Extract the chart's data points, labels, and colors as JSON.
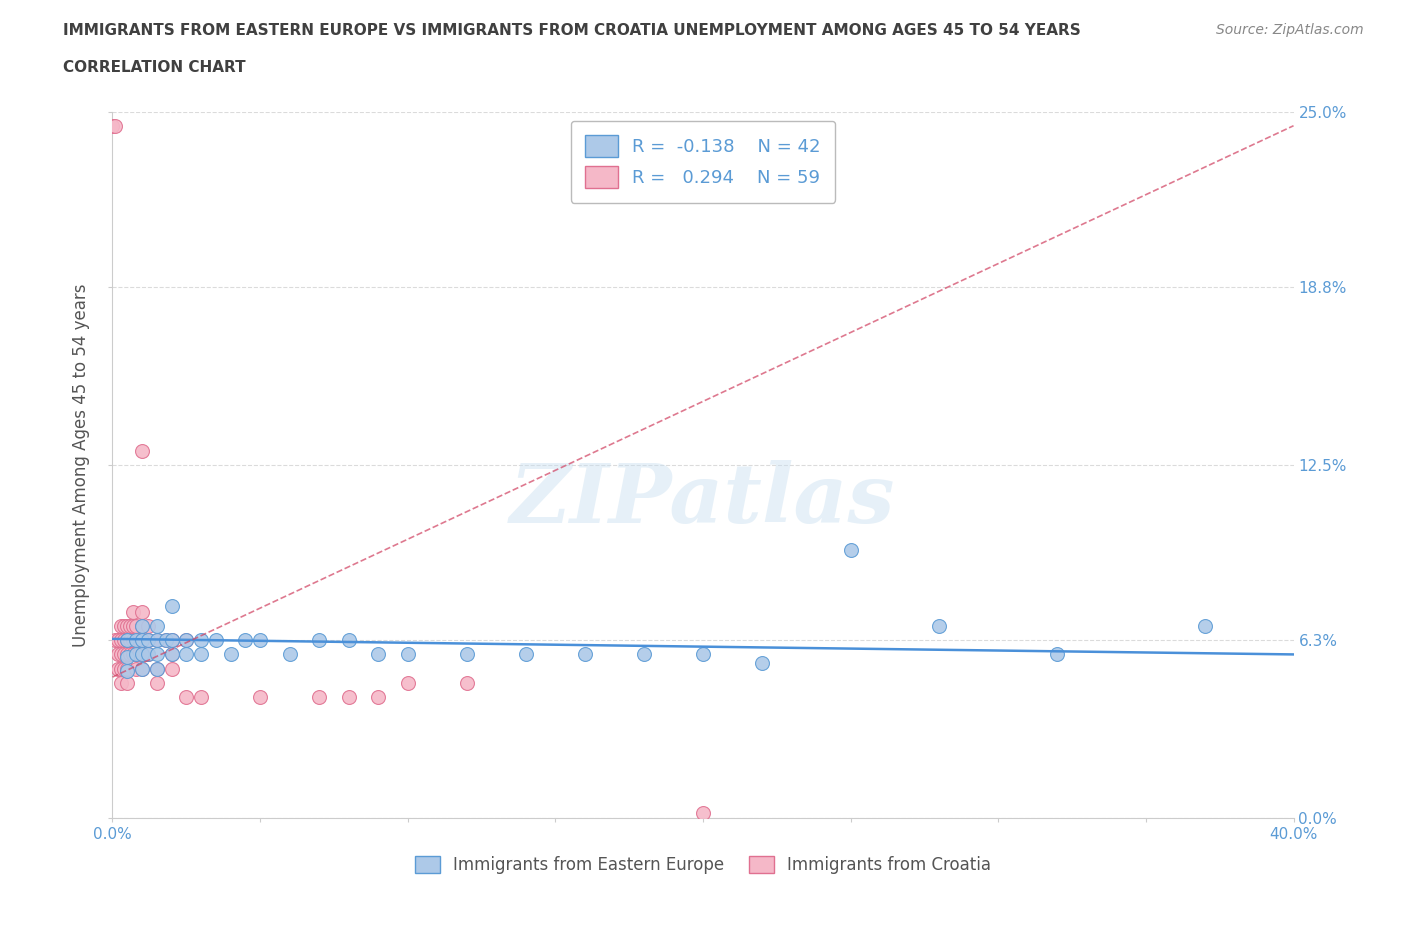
{
  "title_line1": "IMMIGRANTS FROM EASTERN EUROPE VS IMMIGRANTS FROM CROATIA UNEMPLOYMENT AMONG AGES 45 TO 54 YEARS",
  "title_line2": "CORRELATION CHART",
  "source": "Source: ZipAtlas.com",
  "xlabel_legend1": "Immigrants from Eastern Europe",
  "xlabel_legend2": "Immigrants from Croatia",
  "ylabel": "Unemployment Among Ages 45 to 54 years",
  "xlim": [
    0.0,
    0.4
  ],
  "ylim": [
    0.0,
    0.25
  ],
  "xticks": [
    0.0,
    0.05,
    0.1,
    0.15,
    0.2,
    0.25,
    0.3,
    0.35,
    0.4
  ],
  "yticks": [
    0.0,
    0.063,
    0.125,
    0.188,
    0.25
  ],
  "ytick_labels": [
    "0.0%",
    "6.3%",
    "12.5%",
    "18.8%",
    "25.0%"
  ],
  "xtick_label_first": "0.0%",
  "xtick_label_last": "40.0%",
  "blue_color": "#adc9e8",
  "pink_color": "#f5b8c8",
  "blue_edge_color": "#5b9bd5",
  "pink_edge_color": "#e07090",
  "blue_line_color": "#4a90d9",
  "pink_line_color": "#d04060",
  "watermark": "ZIPatlas",
  "R_blue": -0.138,
  "N_blue": 42,
  "R_pink": 0.294,
  "N_pink": 59,
  "blue_scatter_x": [
    0.005,
    0.005,
    0.005,
    0.008,
    0.008,
    0.01,
    0.01,
    0.01,
    0.01,
    0.012,
    0.012,
    0.015,
    0.015,
    0.015,
    0.015,
    0.018,
    0.02,
    0.02,
    0.02,
    0.025,
    0.025,
    0.03,
    0.03,
    0.035,
    0.04,
    0.045,
    0.05,
    0.06,
    0.07,
    0.08,
    0.09,
    0.1,
    0.12,
    0.14,
    0.16,
    0.18,
    0.2,
    0.22,
    0.25,
    0.28,
    0.32,
    0.37
  ],
  "blue_scatter_y": [
    0.063,
    0.057,
    0.052,
    0.063,
    0.058,
    0.063,
    0.058,
    0.053,
    0.068,
    0.063,
    0.058,
    0.063,
    0.058,
    0.053,
    0.068,
    0.063,
    0.075,
    0.058,
    0.063,
    0.063,
    0.058,
    0.063,
    0.058,
    0.063,
    0.058,
    0.063,
    0.063,
    0.058,
    0.063,
    0.063,
    0.058,
    0.058,
    0.058,
    0.058,
    0.058,
    0.058,
    0.058,
    0.055,
    0.095,
    0.068,
    0.058,
    0.068
  ],
  "pink_scatter_x": [
    0.0,
    0.001,
    0.001,
    0.002,
    0.002,
    0.002,
    0.003,
    0.003,
    0.003,
    0.003,
    0.003,
    0.004,
    0.004,
    0.004,
    0.004,
    0.005,
    0.005,
    0.005,
    0.005,
    0.005,
    0.006,
    0.006,
    0.006,
    0.007,
    0.007,
    0.007,
    0.007,
    0.008,
    0.008,
    0.008,
    0.008,
    0.009,
    0.009,
    0.01,
    0.01,
    0.01,
    0.01,
    0.01,
    0.01,
    0.012,
    0.012,
    0.012,
    0.015,
    0.015,
    0.015,
    0.018,
    0.02,
    0.02,
    0.02,
    0.025,
    0.025,
    0.03,
    0.05,
    0.07,
    0.08,
    0.09,
    0.1,
    0.12,
    0.2
  ],
  "pink_scatter_y": [
    0.245,
    0.245,
    0.063,
    0.063,
    0.058,
    0.053,
    0.068,
    0.063,
    0.058,
    0.053,
    0.048,
    0.068,
    0.063,
    0.058,
    0.053,
    0.068,
    0.063,
    0.058,
    0.053,
    0.048,
    0.068,
    0.063,
    0.058,
    0.073,
    0.068,
    0.063,
    0.058,
    0.068,
    0.063,
    0.058,
    0.053,
    0.063,
    0.058,
    0.073,
    0.068,
    0.063,
    0.058,
    0.053,
    0.13,
    0.068,
    0.063,
    0.058,
    0.063,
    0.053,
    0.048,
    0.063,
    0.063,
    0.058,
    0.053,
    0.063,
    0.043,
    0.043,
    0.043,
    0.043,
    0.043,
    0.043,
    0.048,
    0.048,
    0.002
  ],
  "blue_trendline_x": [
    0.0,
    0.4
  ],
  "blue_trendline_y_start": 0.0635,
  "blue_trendline_y_end": 0.058,
  "pink_trendline_x": [
    0.0,
    0.4
  ],
  "pink_trendline_y_start": 0.05,
  "pink_trendline_y_end": 0.245,
  "background_color": "#ffffff",
  "grid_color": "#cccccc",
  "title_color": "#404040",
  "axis_label_color": "#555555",
  "tick_label_color": "#5b9bd5",
  "source_color": "#888888"
}
